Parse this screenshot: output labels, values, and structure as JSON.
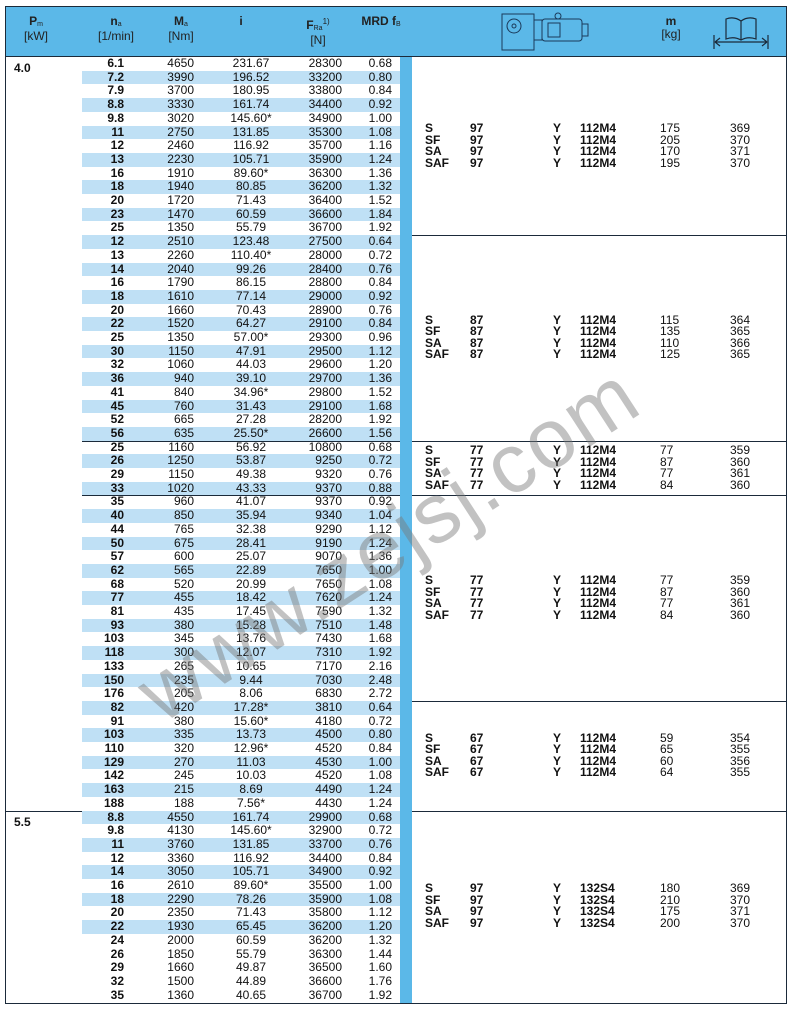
{
  "header": {
    "power": {
      "symbol": "P",
      "sub": "m",
      "unit": "[kW]"
    },
    "speed": {
      "symbol": "n",
      "sub": "a",
      "unit": "[1/min]"
    },
    "torque": {
      "symbol": "M",
      "sub": "a",
      "unit": "[Nm]"
    },
    "ratio": {
      "symbol": "i"
    },
    "force": {
      "symbol": "F",
      "sub": "Ra",
      "sup": "1)",
      "unit": "[N]"
    },
    "service": {
      "symbol": "MRD f",
      "sub": "B"
    },
    "gearmotor_icon": "gearmotor-drawing-icon",
    "mass": {
      "symbol": "m",
      "unit": "[kg]"
    },
    "page_icon": "book-page-icon"
  },
  "colors": {
    "header_bg": "#5bb8e8",
    "row_shade": "#bfe0f5",
    "divider_bar": "#5bb8e8"
  },
  "watermark": "www.zejsj.com",
  "blocks": [
    {
      "power": "4.0",
      "rows": [
        [
          "6.1",
          "4650",
          "231.67",
          "28300",
          "0.68"
        ],
        [
          "7.2",
          "3990",
          "196.52",
          "33200",
          "0.80"
        ],
        [
          "7.9",
          "3700",
          "180.95",
          "33800",
          "0.84"
        ],
        [
          "8.8",
          "3330",
          "161.74",
          "34400",
          "0.92"
        ],
        [
          "9.8",
          "3020",
          "145.60*",
          "34900",
          "1.00"
        ],
        [
          "11",
          "2750",
          "131.85",
          "35300",
          "1.08"
        ],
        [
          "12",
          "2460",
          "116.92",
          "35700",
          "1.16"
        ],
        [
          "13",
          "2230",
          "105.71",
          "35900",
          "1.24"
        ],
        [
          "16",
          "1910",
          "89.60*",
          "36300",
          "1.36"
        ],
        [
          "18",
          "1940",
          "80.85",
          "36200",
          "1.32"
        ],
        [
          "20",
          "1720",
          "71.43",
          "36400",
          "1.52"
        ],
        [
          "23",
          "1470",
          "60.59",
          "36600",
          "1.84"
        ],
        [
          "25",
          "1350",
          "55.79",
          "36700",
          "1.92"
        ]
      ],
      "variants": [
        [
          "S",
          "97",
          "Y",
          "112M4",
          "175",
          "369"
        ],
        [
          "SF",
          "97",
          "Y",
          "112M4",
          "205",
          "370"
        ],
        [
          "SA",
          "97",
          "Y",
          "112M4",
          "170",
          "371"
        ],
        [
          "SAF",
          "97",
          "Y",
          "112M4",
          "195",
          "370"
        ]
      ]
    },
    {
      "power": "",
      "rows": [
        [
          "12",
          "2510",
          "123.48",
          "27500",
          "0.64"
        ],
        [
          "13",
          "2260",
          "110.40*",
          "28000",
          "0.72"
        ],
        [
          "14",
          "2040",
          "99.26",
          "28400",
          "0.76"
        ],
        [
          "16",
          "1790",
          "86.15",
          "28800",
          "0.84"
        ],
        [
          "18",
          "1610",
          "77.14",
          "29000",
          "0.92"
        ],
        [
          "20",
          "1660",
          "70.43",
          "28900",
          "0.76"
        ],
        [
          "22",
          "1520",
          "64.27",
          "29100",
          "0.84"
        ],
        [
          "25",
          "1350",
          "57.00*",
          "29300",
          "0.96"
        ],
        [
          "30",
          "1150",
          "47.91",
          "29500",
          "1.12"
        ],
        [
          "32",
          "1060",
          "44.03",
          "29600",
          "1.20"
        ],
        [
          "36",
          "940",
          "39.10",
          "29700",
          "1.36"
        ],
        [
          "41",
          "840",
          "34.96*",
          "29800",
          "1.52"
        ],
        [
          "45",
          "760",
          "31.43",
          "29100",
          "1.68"
        ],
        [
          "52",
          "665",
          "27.28",
          "28200",
          "1.92"
        ],
        [
          "56",
          "635",
          "25.50*",
          "26600",
          "1.56"
        ]
      ],
      "variants": [
        [
          "S",
          "87",
          "Y",
          "112M4",
          "115",
          "364"
        ],
        [
          "SF",
          "87",
          "Y",
          "112M4",
          "135",
          "365"
        ],
        [
          "SA",
          "87",
          "Y",
          "112M4",
          "110",
          "366"
        ],
        [
          "SAF",
          "87",
          "Y",
          "112M4",
          "125",
          "365"
        ]
      ]
    },
    {
      "power": "",
      "rows": [
        [
          "25",
          "1160",
          "56.92",
          "10800",
          "0.68"
        ],
        [
          "26",
          "1250",
          "53.87",
          "9250",
          "0.72"
        ],
        [
          "29",
          "1150",
          "49.38",
          "9320",
          "0.76"
        ],
        [
          "33",
          "1020",
          "43.33",
          "9370",
          "0.88"
        ]
      ],
      "variants": [
        [
          "S",
          "77",
          "Y",
          "112M4",
          "77",
          "359"
        ],
        [
          "SF",
          "77",
          "Y",
          "112M4",
          "87",
          "360"
        ],
        [
          "SA",
          "77",
          "Y",
          "112M4",
          "77",
          "361"
        ],
        [
          "SAF",
          "77",
          "Y",
          "112M4",
          "84",
          "360"
        ]
      ]
    },
    {
      "power": "",
      "rows": [
        [
          "35",
          "960",
          "41.07",
          "9370",
          "0.92"
        ],
        [
          "40",
          "850",
          "35.94",
          "9340",
          "1.04"
        ],
        [
          "44",
          "765",
          "32.38",
          "9290",
          "1.12"
        ],
        [
          "50",
          "675",
          "28.41",
          "9190",
          "1.24"
        ],
        [
          "57",
          "600",
          "25.07",
          "9070",
          "1.36"
        ],
        [
          "62",
          "565",
          "22.89",
          "7650",
          "1.00"
        ],
        [
          "68",
          "520",
          "20.99",
          "7650",
          "1.08"
        ],
        [
          "77",
          "455",
          "18.42",
          "7620",
          "1.24"
        ],
        [
          "81",
          "435",
          "17.45",
          "7590",
          "1.32"
        ],
        [
          "93",
          "380",
          "15.28",
          "7510",
          "1.48"
        ],
        [
          "103",
          "345",
          "13.76",
          "7430",
          "1.68"
        ],
        [
          "118",
          "300",
          "12.07",
          "7310",
          "1.92"
        ],
        [
          "133",
          "265",
          "10.65",
          "7170",
          "2.16"
        ],
        [
          "150",
          "235",
          "9.44",
          "7030",
          "2.48"
        ],
        [
          "176",
          "205",
          "8.06",
          "6830",
          "2.72"
        ]
      ],
      "variants": [
        [
          "S",
          "77",
          "Y",
          "112M4",
          "77",
          "359"
        ],
        [
          "SF",
          "77",
          "Y",
          "112M4",
          "87",
          "360"
        ],
        [
          "SA",
          "77",
          "Y",
          "112M4",
          "77",
          "361"
        ],
        [
          "SAF",
          "77",
          "Y",
          "112M4",
          "84",
          "360"
        ]
      ]
    },
    {
      "power": "",
      "rows": [
        [
          "82",
          "420",
          "17.28*",
          "3810",
          "0.64"
        ],
        [
          "91",
          "380",
          "15.60*",
          "4180",
          "0.72"
        ],
        [
          "103",
          "335",
          "13.73",
          "4500",
          "0.80"
        ],
        [
          "110",
          "320",
          "12.96*",
          "4520",
          "0.84"
        ],
        [
          "129",
          "270",
          "11.03",
          "4530",
          "1.00"
        ],
        [
          "142",
          "245",
          "10.03",
          "4520",
          "1.08"
        ],
        [
          "163",
          "215",
          "8.69",
          "4490",
          "1.24"
        ],
        [
          "188",
          "188",
          "7.56*",
          "4430",
          "1.24"
        ]
      ],
      "variants": [
        [
          "S",
          "67",
          "Y",
          "112M4",
          "59",
          "354"
        ],
        [
          "SF",
          "67",
          "Y",
          "112M4",
          "65",
          "355"
        ],
        [
          "SA",
          "67",
          "Y",
          "112M4",
          "60",
          "356"
        ],
        [
          "SAF",
          "67",
          "Y",
          "112M4",
          "64",
          "355"
        ]
      ]
    },
    {
      "power": "5.5",
      "rows": [
        [
          "8.8",
          "4550",
          "161.74",
          "29900",
          "0.68"
        ],
        [
          "9.8",
          "4130",
          "145.60*",
          "32900",
          "0.72"
        ],
        [
          "11",
          "3760",
          "131.85",
          "33700",
          "0.76"
        ],
        [
          "12",
          "3360",
          "116.92",
          "34400",
          "0.84"
        ],
        [
          "14",
          "3050",
          "105.71",
          "34900",
          "0.92"
        ],
        [
          "16",
          "2610",
          "89.60*",
          "35500",
          "1.00"
        ],
        [
          "18",
          "2290",
          "78.26",
          "35900",
          "1.08"
        ],
        [
          "20",
          "2350",
          "71.43",
          "35800",
          "1.12"
        ],
        [
          "22",
          "1930",
          "65.45",
          "36200",
          "1.20"
        ],
        [
          "24",
          "2000",
          "60.59",
          "36200",
          "1.32"
        ],
        [
          "26",
          "1850",
          "55.79",
          "36300",
          "1.44"
        ],
        [
          "29",
          "1660",
          "49.87",
          "36500",
          "1.60"
        ],
        [
          "32",
          "1500",
          "44.89",
          "36600",
          "1.76"
        ],
        [
          "35",
          "1360",
          "40.65",
          "36700",
          "1.92"
        ]
      ],
      "variants": [
        [
          "S",
          "97",
          "Y",
          "132S4",
          "180",
          "369"
        ],
        [
          "SF",
          "97",
          "Y",
          "132S4",
          "210",
          "370"
        ],
        [
          "SA",
          "97",
          "Y",
          "132S4",
          "175",
          "371"
        ],
        [
          "SAF",
          "97",
          "Y",
          "132S4",
          "200",
          "370"
        ]
      ]
    }
  ]
}
